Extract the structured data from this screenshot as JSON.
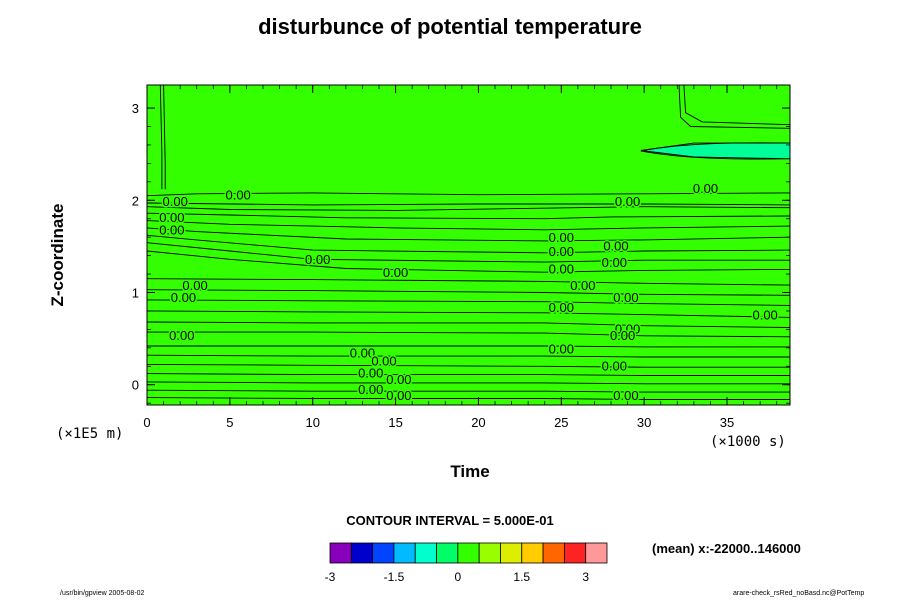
{
  "chart_data": {
    "type": "heatmap",
    "title": "disturbunce of potential temperature",
    "xlabel": "Time",
    "ylabel": "Z-coordinate",
    "x_unit": "(×1000 s)",
    "y_unit": "(×1E5 m)",
    "xlim": [
      0,
      38.8
    ],
    "ylim": [
      -0.22,
      3.25
    ],
    "x_ticks": [
      "0",
      "5",
      "10",
      "15",
      "20",
      "25",
      "30",
      "35"
    ],
    "x_tick_values": [
      0,
      5,
      10,
      15,
      20,
      25,
      30,
      35
    ],
    "y_ticks": [
      "0",
      "1",
      "2",
      "3"
    ],
    "y_tick_values": [
      0,
      1,
      2,
      3
    ],
    "background_level": "0 to 0.5",
    "regions": [
      {
        "name": "upper-right warm patch",
        "x": [
          32.2,
          38.8
        ],
        "y": [
          2.75,
          3.25
        ],
        "color": "#33ff00"
      },
      {
        "name": "upper-right cool tongue",
        "x": [
          29.8,
          38.8
        ],
        "y": [
          2.45,
          2.62
        ],
        "color": "#00ff99"
      }
    ],
    "contour_labels": [
      {
        "text": "0.00",
        "x": 5.5,
        "y": 2.05
      },
      {
        "text": "0.00",
        "x": 1.7,
        "y": 1.98
      },
      {
        "text": "0.00",
        "x": 1.5,
        "y": 1.81
      },
      {
        "text": "0.00",
        "x": 1.5,
        "y": 1.67
      },
      {
        "text": "0.00",
        "x": 10.3,
        "y": 1.35
      },
      {
        "text": "0.00",
        "x": 15.0,
        "y": 1.21
      },
      {
        "text": "0.00",
        "x": 2.9,
        "y": 1.07
      },
      {
        "text": "0.00",
        "x": 2.2,
        "y": 0.94
      },
      {
        "text": "0.00",
        "x": 2.1,
        "y": 0.53
      },
      {
        "text": "0.00",
        "x": 13.0,
        "y": 0.34
      },
      {
        "text": "0.00",
        "x": 14.3,
        "y": 0.25
      },
      {
        "text": "0.00",
        "x": 13.5,
        "y": 0.12
      },
      {
        "text": "0.00",
        "x": 15.2,
        "y": 0.05
      },
      {
        "text": "0.00",
        "x": 13.5,
        "y": -0.06
      },
      {
        "text": "0.00",
        "x": 15.2,
        "y": -0.12
      },
      {
        "text": "0.00",
        "x": 25.0,
        "y": 1.59
      },
      {
        "text": "0.00",
        "x": 25.0,
        "y": 1.44
      },
      {
        "text": "0.00",
        "x": 25.0,
        "y": 1.25
      },
      {
        "text": "0.00",
        "x": 26.3,
        "y": 1.07
      },
      {
        "text": "0.00",
        "x": 25.0,
        "y": 0.83
      },
      {
        "text": "0.00",
        "x": 25.0,
        "y": 0.38
      },
      {
        "text": "0.00",
        "x": 28.3,
        "y": 1.5
      },
      {
        "text": "0.00",
        "x": 28.2,
        "y": 1.32
      },
      {
        "text": "0.00",
        "x": 28.9,
        "y": 0.94
      },
      {
        "text": "0.00",
        "x": 29.0,
        "y": 0.6
      },
      {
        "text": "0.00",
        "x": 28.7,
        "y": 0.53
      },
      {
        "text": "0.00",
        "x": 28.2,
        "y": 0.2
      },
      {
        "text": "0.00",
        "x": 28.9,
        "y": -0.12
      },
      {
        "text": "0.00",
        "x": 29.0,
        "y": 1.98
      },
      {
        "text": "0.00",
        "x": 33.7,
        "y": 2.12
      },
      {
        "text": "0.00",
        "x": 37.3,
        "y": 0.75
      }
    ],
    "contour_lines": [
      [
        [
          0.0,
          2.05
        ],
        [
          3.0,
          2.07
        ],
        [
          10.0,
          2.08
        ],
        [
          20.0,
          2.06
        ],
        [
          30.0,
          2.07
        ],
        [
          38.8,
          2.08
        ]
      ],
      [
        [
          0.0,
          1.97
        ],
        [
          10.0,
          1.95
        ],
        [
          20.0,
          1.96
        ],
        [
          30.0,
          1.96
        ],
        [
          38.8,
          1.95
        ]
      ],
      [
        [
          0.0,
          1.93
        ],
        [
          5.0,
          1.9
        ],
        [
          15.0,
          1.89
        ],
        [
          30.0,
          1.93
        ],
        [
          38.8,
          1.92
        ]
      ],
      [
        [
          0.0,
          1.86
        ],
        [
          5.0,
          1.84
        ],
        [
          12.0,
          1.81
        ],
        [
          24.0,
          1.8
        ],
        [
          28.0,
          1.82
        ],
        [
          38.8,
          1.83
        ]
      ],
      [
        [
          0.0,
          1.78
        ],
        [
          5.0,
          1.74
        ],
        [
          15.0,
          1.7
        ],
        [
          24.0,
          1.68
        ],
        [
          30.0,
          1.7
        ],
        [
          38.8,
          1.72
        ]
      ],
      [
        [
          0.0,
          1.7
        ],
        [
          3.0,
          1.66
        ],
        [
          12.0,
          1.58
        ],
        [
          24.0,
          1.56
        ],
        [
          30.0,
          1.57
        ],
        [
          38.8,
          1.6
        ]
      ],
      [
        [
          0.0,
          1.62
        ],
        [
          3.0,
          1.57
        ],
        [
          10.0,
          1.46
        ],
        [
          24.0,
          1.43
        ],
        [
          30.0,
          1.45
        ],
        [
          38.8,
          1.46
        ]
      ],
      [
        [
          0.0,
          1.54
        ],
        [
          5.0,
          1.45
        ],
        [
          10.0,
          1.36
        ],
        [
          24.0,
          1.33
        ],
        [
          30.0,
          1.35
        ],
        [
          38.8,
          1.35
        ]
      ],
      [
        [
          0.0,
          1.45
        ],
        [
          5.0,
          1.36
        ],
        [
          12.0,
          1.26
        ],
        [
          24.0,
          1.22
        ],
        [
          30.0,
          1.24
        ],
        [
          38.8,
          1.25
        ]
      ],
      [
        [
          0.0,
          1.15
        ],
        [
          10.0,
          1.14
        ],
        [
          24.0,
          1.12
        ],
        [
          30.0,
          1.1
        ],
        [
          38.8,
          1.08
        ]
      ],
      [
        [
          0.0,
          1.03
        ],
        [
          10.0,
          1.02
        ],
        [
          24.0,
          1.0
        ],
        [
          30.0,
          0.98
        ],
        [
          38.8,
          0.97
        ]
      ],
      [
        [
          0.0,
          0.92
        ],
        [
          10.0,
          0.91
        ],
        [
          24.0,
          0.9
        ],
        [
          30.0,
          0.88
        ],
        [
          38.8,
          0.86
        ]
      ],
      [
        [
          0.0,
          0.8
        ],
        [
          10.0,
          0.79
        ],
        [
          24.0,
          0.78
        ],
        [
          30.0,
          0.76
        ],
        [
          38.8,
          0.73
        ]
      ],
      [
        [
          0.0,
          0.68
        ],
        [
          10.0,
          0.67
        ],
        [
          24.0,
          0.67
        ],
        [
          30.0,
          0.64
        ],
        [
          38.8,
          0.62
        ]
      ],
      [
        [
          0.0,
          0.57
        ],
        [
          10.0,
          0.57
        ],
        [
          24.0,
          0.56
        ],
        [
          30.0,
          0.53
        ],
        [
          38.8,
          0.52
        ]
      ],
      [
        [
          0.0,
          0.42
        ],
        [
          10.0,
          0.42
        ],
        [
          24.0,
          0.42
        ],
        [
          30.0,
          0.41
        ],
        [
          38.8,
          0.41
        ]
      ],
      [
        [
          0.0,
          0.32
        ],
        [
          10.0,
          0.31
        ],
        [
          24.0,
          0.31
        ],
        [
          30.0,
          0.3
        ],
        [
          38.8,
          0.3
        ]
      ],
      [
        [
          0.0,
          0.22
        ],
        [
          10.0,
          0.21
        ],
        [
          24.0,
          0.2
        ],
        [
          30.0,
          0.19
        ],
        [
          38.8,
          0.19
        ]
      ],
      [
        [
          0.0,
          0.12
        ],
        [
          10.0,
          0.11
        ],
        [
          24.0,
          0.11
        ],
        [
          30.0,
          0.1
        ],
        [
          38.8,
          0.1
        ]
      ],
      [
        [
          0.0,
          0.03
        ],
        [
          10.0,
          0.02
        ],
        [
          24.0,
          0.02
        ],
        [
          30.0,
          0.01
        ],
        [
          38.8,
          0.01
        ]
      ],
      [
        [
          0.0,
          -0.06
        ],
        [
          10.0,
          -0.07
        ],
        [
          24.0,
          -0.07
        ],
        [
          30.0,
          -0.08
        ],
        [
          38.8,
          -0.08
        ]
      ],
      [
        [
          0.0,
          -0.14
        ],
        [
          10.0,
          -0.15
        ],
        [
          24.0,
          -0.15
        ],
        [
          30.0,
          -0.16
        ],
        [
          38.8,
          -0.16
        ]
      ],
      [
        [
          0.8,
          3.25
        ],
        [
          0.9,
          2.5
        ],
        [
          0.9,
          2.12
        ]
      ],
      [
        [
          1.0,
          3.25
        ],
        [
          1.1,
          2.4
        ],
        [
          1.1,
          2.12
        ]
      ],
      [
        [
          32.1,
          3.25
        ],
        [
          32.2,
          2.9
        ],
        [
          32.8,
          2.8
        ],
        [
          38.8,
          2.78
        ]
      ],
      [
        [
          32.4,
          3.25
        ],
        [
          32.5,
          2.95
        ],
        [
          33.5,
          2.85
        ],
        [
          38.8,
          2.82
        ]
      ],
      [
        [
          29.8,
          2.54
        ],
        [
          33.0,
          2.62
        ],
        [
          38.8,
          2.62
        ]
      ],
      [
        [
          29.8,
          2.54
        ],
        [
          33.0,
          2.47
        ],
        [
          38.8,
          2.45
        ]
      ]
    ],
    "colorbar": {
      "colors": [
        "#8800bb",
        "#0000cc",
        "#0044ff",
        "#00bbff",
        "#00ffcc",
        "#00ff66",
        "#33ff00",
        "#99ff00",
        "#ddee00",
        "#ffcc00",
        "#ff6600",
        "#ff2222",
        "#ff9999"
      ],
      "tick_labels": [
        "-3",
        "-1.5",
        "0",
        "1.5",
        "3"
      ],
      "tick_values": [
        -3,
        -1.5,
        0,
        1.5,
        3
      ],
      "min": -3,
      "max": 3.5
    },
    "contour_interval_text": "CONTOUR INTERVAL = 5.000E-01",
    "mean_text": "(mean) x:-22000..146000"
  },
  "footer": {
    "left": "/usr/bin/gpview 2005-08-02",
    "right": "arare-check_rsRed_noBasd.nc@PotTemp"
  }
}
